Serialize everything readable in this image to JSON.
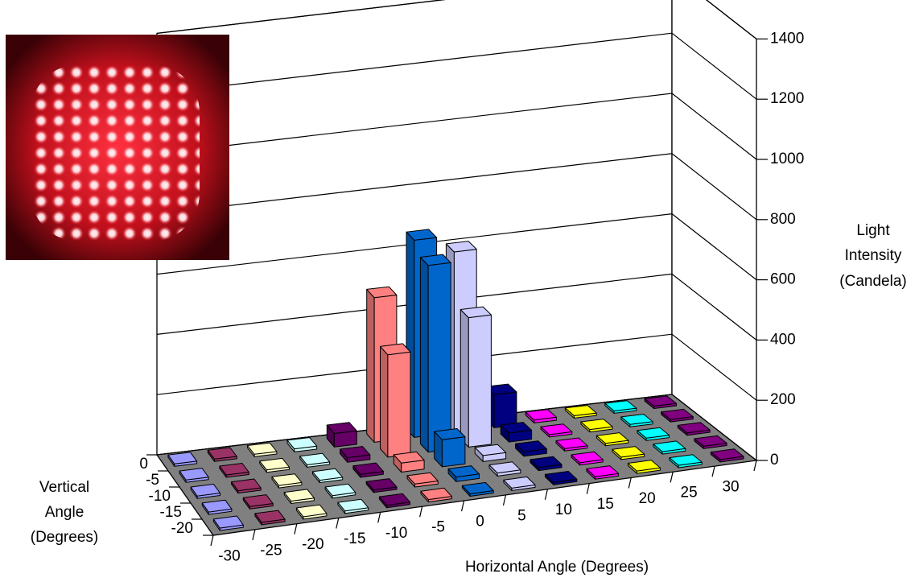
{
  "chart_data": {
    "type": "bar3d",
    "x_label": "Horizontal Angle (Degrees)",
    "y_label": [
      "Vertical",
      "Angle",
      "(Degrees)"
    ],
    "z_label": [
      "Light",
      "Intensity",
      "(Candela)"
    ],
    "categories": [
      "0",
      "-5",
      "-10",
      "-15",
      "-20"
    ],
    "series": [
      {
        "name": "-30",
        "color": "#9999ff",
        "values": [
          8,
          8,
          8,
          8,
          8
        ]
      },
      {
        "name": "-25",
        "color": "#993366",
        "values": [
          8,
          8,
          8,
          8,
          8
        ]
      },
      {
        "name": "-20",
        "color": "#ffffcc",
        "values": [
          8,
          8,
          8,
          8,
          8
        ]
      },
      {
        "name": "-15",
        "color": "#ccffff",
        "values": [
          10,
          8,
          8,
          8,
          8
        ]
      },
      {
        "name": "-10",
        "color": "#660066",
        "values": [
          45,
          15,
          10,
          8,
          8
        ]
      },
      {
        "name": "-5",
        "color": "#ff8080",
        "values": [
          480,
          340,
          30,
          10,
          8
        ]
      },
      {
        "name": "0",
        "color": "#0066cc",
        "values": [
          655,
          620,
          90,
          15,
          8
        ]
      },
      {
        "name": "5",
        "color": "#ccccff",
        "values": [
          600,
          430,
          20,
          10,
          8
        ]
      },
      {
        "name": "10",
        "color": "#000080",
        "values": [
          110,
          30,
          15,
          10,
          8
        ]
      },
      {
        "name": "15",
        "color": "#ff00ff",
        "values": [
          10,
          8,
          8,
          8,
          8
        ]
      },
      {
        "name": "20",
        "color": "#ffff00",
        "values": [
          8,
          8,
          8,
          8,
          8
        ]
      },
      {
        "name": "25",
        "color": "#00ffff",
        "values": [
          8,
          8,
          8,
          8,
          8
        ]
      },
      {
        "name": "30",
        "color": "#800080",
        "values": [
          8,
          8,
          8,
          8,
          8
        ]
      }
    ],
    "zlim": [
      0,
      1400
    ],
    "zticks": [
      0,
      200,
      400,
      600,
      800,
      1000,
      1200,
      1400
    ],
    "grid": true
  }
}
